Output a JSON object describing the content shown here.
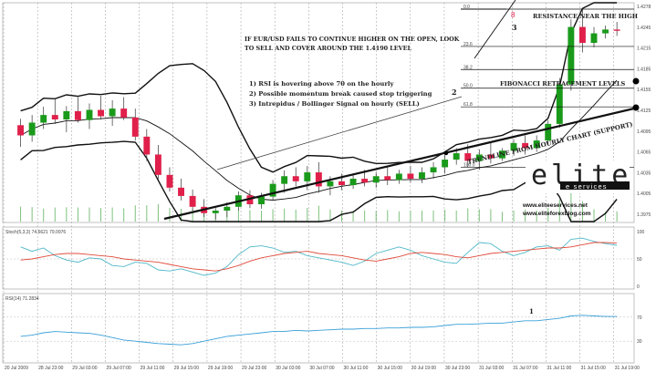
{
  "chart_data": {
    "type": "candlestick",
    "instrument": "EUR/USD",
    "price_ticks": [
      "1.4278",
      "1.4245",
      "1.4215",
      "1.4185",
      "1.4155",
      "1.4125",
      "1.4095",
      "1.4065",
      "1.4035",
      "1.4005",
      "1.3975"
    ],
    "x_ticks": [
      "20 Jul 2009",
      "28 Jul 23:00",
      "29 Jul 03:00",
      "29 Jul 07:00",
      "29 Jul 11:00",
      "29 Jul 15:00",
      "29 Jul 19:00",
      "29 Jul 23:00",
      "30 Jul 03:00",
      "30 Jul 07:00",
      "30 Jul 11:00",
      "30 Jul 15:00",
      "30 Jul 19:00",
      "30 Jul 23:00",
      "31 Jul 03:00",
      "31 Jul 07:00",
      "31 Jul 11:00",
      "31 Jul 15:00",
      "31 Jul 19:00"
    ],
    "candles": [
      [
        1.4096,
        1.4106,
        1.4062,
        1.408
      ],
      [
        1.408,
        1.4112,
        1.407,
        1.41
      ],
      [
        1.41,
        1.4125,
        1.409,
        1.4112
      ],
      [
        1.4112,
        1.4138,
        1.4098,
        1.4105
      ],
      [
        1.4105,
        1.4126,
        1.4085,
        1.4118
      ],
      [
        1.4118,
        1.414,
        1.41,
        1.4104
      ],
      [
        1.4104,
        1.413,
        1.409,
        1.412
      ],
      [
        1.412,
        1.4142,
        1.4105,
        1.411
      ],
      [
        1.411,
        1.4135,
        1.4095,
        1.4122
      ],
      [
        1.4122,
        1.414,
        1.4104,
        1.4108
      ],
      [
        1.4108,
        1.4122,
        1.4072,
        1.4078
      ],
      [
        1.4078,
        1.409,
        1.404,
        1.405
      ],
      [
        1.405,
        1.4065,
        1.401,
        1.4018
      ],
      [
        1.4018,
        1.403,
        1.3992,
        1.3998
      ],
      [
        1.3998,
        1.4012,
        1.3978,
        1.3985
      ],
      [
        1.3985,
        1.3995,
        1.3962,
        1.3968
      ],
      [
        1.3968,
        1.398,
        1.3952,
        1.3958
      ],
      [
        1.3958,
        1.3966,
        1.3948,
        1.3962
      ],
      [
        1.3962,
        1.3975,
        1.3952,
        1.3968
      ],
      [
        1.3968,
        1.3992,
        1.3962,
        1.3986
      ],
      [
        1.3986,
        1.3994,
        1.3966,
        1.3972
      ],
      [
        1.3972,
        1.399,
        1.3965,
        1.3984
      ],
      [
        1.3984,
        1.401,
        1.3978,
        1.4004
      ],
      [
        1.4004,
        1.4025,
        1.399,
        1.4016
      ],
      [
        1.4016,
        1.403,
        1.4,
        1.4008
      ],
      [
        1.4008,
        1.4032,
        1.3994,
        1.4022
      ],
      [
        1.4022,
        1.4038,
        1.399,
        1.4
      ],
      [
        1.4,
        1.4016,
        1.3986,
        1.4008
      ],
      [
        1.4008,
        1.402,
        1.3994,
        1.4002
      ],
      [
        1.4002,
        1.402,
        1.3996,
        1.4012
      ],
      [
        1.4012,
        1.4026,
        1.4,
        1.4006
      ],
      [
        1.4006,
        1.4022,
        1.3998,
        1.4016
      ],
      [
        1.4016,
        1.403,
        1.4002,
        1.401
      ],
      [
        1.401,
        1.4026,
        1.4004,
        1.402
      ],
      [
        1.402,
        1.4032,
        1.4006,
        1.4012
      ],
      [
        1.4012,
        1.403,
        1.4005,
        1.4022
      ],
      [
        1.4022,
        1.4038,
        1.4012,
        1.403
      ],
      [
        1.403,
        1.405,
        1.402,
        1.4042
      ],
      [
        1.4042,
        1.406,
        1.4034,
        1.4052
      ],
      [
        1.4052,
        1.4066,
        1.403,
        1.404
      ],
      [
        1.404,
        1.4058,
        1.4026,
        1.405
      ],
      [
        1.405,
        1.4068,
        1.4036,
        1.4044
      ],
      [
        1.4044,
        1.406,
        1.404,
        1.4056
      ],
      [
        1.4056,
        1.4074,
        1.4048,
        1.4068
      ],
      [
        1.4068,
        1.408,
        1.405,
        1.406
      ],
      [
        1.406,
        1.408,
        1.4054,
        1.4072
      ],
      [
        1.4072,
        1.4104,
        1.4066,
        1.4098
      ],
      [
        1.4098,
        1.417,
        1.4092,
        1.416
      ],
      [
        1.416,
        1.4262,
        1.415,
        1.425
      ],
      [
        1.425,
        1.4278,
        1.421,
        1.4225
      ],
      [
        1.4225,
        1.425,
        1.4218,
        1.424
      ],
      [
        1.424,
        1.4252,
        1.4232,
        1.4246
      ],
      [
        1.4246,
        1.4258,
        1.4236,
        1.4244
      ]
    ],
    "fibonacci_levels": [
      "0.0",
      "23.6",
      "38.2",
      "50.0",
      "61.8",
      "100.0"
    ],
    "annotations": {
      "top_note_line1": "IF EUR/USD FAILS TO CONTINUE HIGHER ON THE OPEN, LOOK",
      "top_note_line2": "TO SELL AND COVER AROUND THE 1.4190 LEVEL",
      "reasons": [
        "1) RSI is hovering above 70 on the hourly",
        "2) Possible momentum break caused stop triggering",
        "3) Intrepidus / Bollinger Signal on hourly (SELL)"
      ],
      "resistance": "RESISTANCE NEAR THE HIGH",
      "fibonacci": "FIBONACCI RETRACEMENT LEVELS",
      "trendline": "TRENDLINE FROM HOURLY CHART (SUPPORT)",
      "marker_1": "1",
      "marker_2": "2",
      "marker_3": "3"
    },
    "stochastic": {
      "title": "Stoch(5,3,3) 74.6621 79.0976",
      "ticks": [
        "100",
        "50",
        "0"
      ],
      "k": [
        72,
        64,
        70,
        56,
        48,
        44,
        52,
        50,
        38,
        36,
        44,
        42,
        30,
        28,
        32,
        26,
        20,
        24,
        36,
        58,
        72,
        74,
        70,
        62,
        64,
        56,
        52,
        48,
        44,
        38,
        46,
        60,
        66,
        72,
        66,
        56,
        50,
        44,
        42,
        62,
        80,
        78,
        64,
        56,
        62,
        72,
        74,
        66,
        86,
        88,
        82,
        78,
        75
      ],
      "d": [
        48,
        50,
        54,
        58,
        60,
        60,
        58,
        56,
        54,
        50,
        48,
        46,
        44,
        40,
        36,
        32,
        30,
        28,
        32,
        38,
        46,
        52,
        56,
        60,
        62,
        64,
        60,
        58,
        56,
        52,
        48,
        46,
        50,
        54,
        60,
        62,
        60,
        58,
        54,
        52,
        56,
        60,
        62,
        64,
        66,
        68,
        70,
        70,
        72,
        76,
        80,
        80,
        79
      ]
    },
    "rsi": {
      "title": "RSI(14) 71.2834",
      "ticks": [
        "70",
        "30"
      ],
      "values": [
        38,
        40,
        44,
        46,
        45,
        44,
        43,
        40,
        36,
        32,
        30,
        28,
        26,
        25,
        24,
        26,
        30,
        34,
        38,
        40,
        42,
        44,
        46,
        46,
        48,
        47,
        48,
        49,
        50,
        50,
        51,
        51,
        52,
        52,
        53,
        53,
        54,
        56,
        58,
        58,
        59,
        60,
        60,
        62,
        64,
        64,
        66,
        68,
        72,
        73,
        72,
        71,
        71
      ],
      "marker": "1"
    },
    "branding": {
      "logo_main": "elite",
      "logo_sub": "e services",
      "url1": "www.eliteeservices.net",
      "url2": "www.eliteforexblog.com"
    },
    "colors": {
      "bull": "#1a9a1a",
      "bear": "#e0204a",
      "stoch_k": "#4fb8c8",
      "stoch_d": "#e04a3a",
      "rsi": "#3aa0d8",
      "volume": "#7cc07c",
      "band": "#111111"
    }
  }
}
